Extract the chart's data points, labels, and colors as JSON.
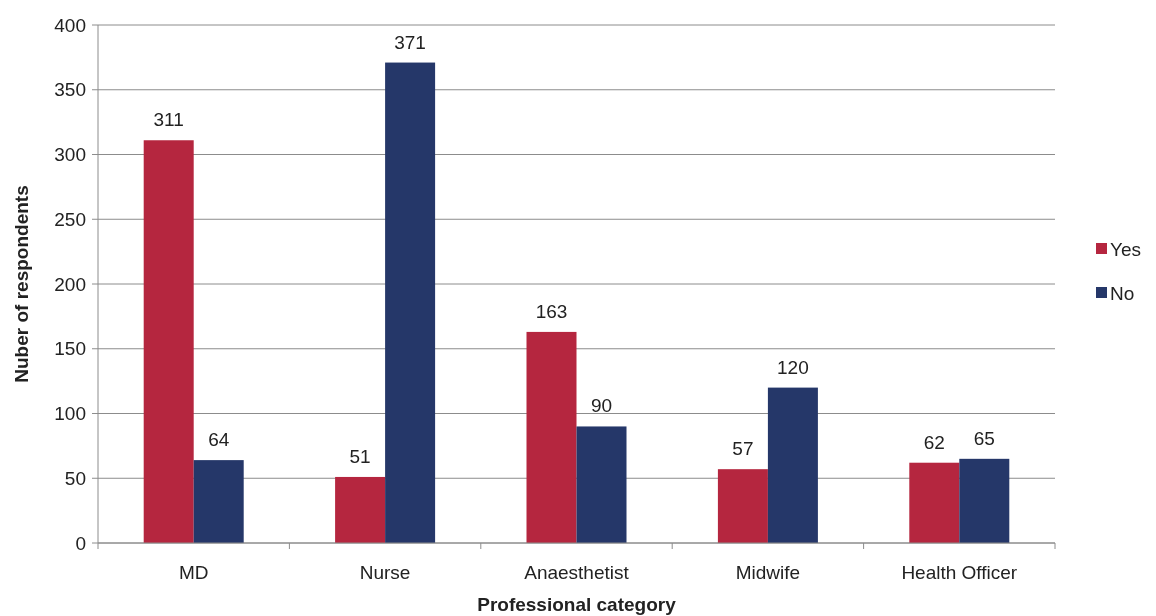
{
  "chart_data": {
    "type": "bar",
    "xlabel": "Professional category",
    "ylabel": "Nuber of respondents",
    "categories": [
      "MD",
      "Nurse",
      "Anaesthetist",
      "Midwife",
      "Health Officer"
    ],
    "series": [
      {
        "name": "Yes",
        "color": "#b5263f",
        "values": [
          311,
          51,
          163,
          57,
          62
        ]
      },
      {
        "name": "No",
        "color": "#253769",
        "values": [
          64,
          371,
          90,
          120,
          65
        ]
      }
    ],
    "ylim": [
      0,
      400
    ],
    "yticks": [
      0,
      50,
      100,
      150,
      200,
      250,
      300,
      350,
      400
    ],
    "grid": "y",
    "legend": "right",
    "data_labels": true
  }
}
